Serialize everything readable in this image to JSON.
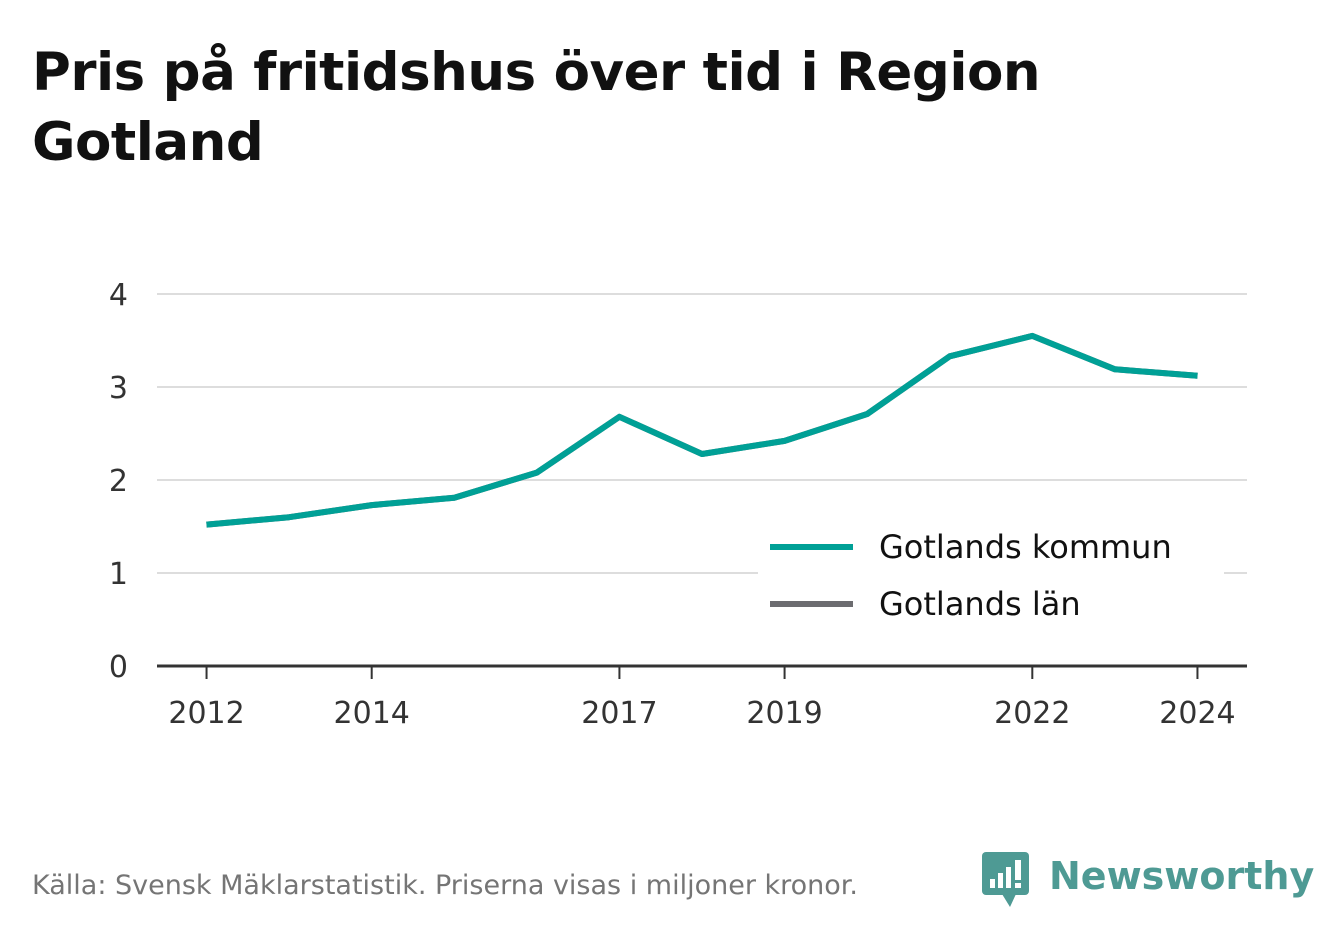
{
  "title": "Pris på fritidshus över tid i Region Gotland",
  "footer": {
    "source": "Källa: Svensk Mäklarstatistik. Priserna visas i miljoner kronor.",
    "brand": "Newsworthy"
  },
  "colors": {
    "kommun": "#00a096",
    "lan": "#6c6c70",
    "grid": "#dddddd",
    "axis": "#333333",
    "brand": "#4e9a94"
  },
  "chart_data": {
    "type": "line",
    "x": [
      2012,
      2013,
      2014,
      2015,
      2016,
      2017,
      2018,
      2019,
      2020,
      2021,
      2022,
      2023,
      2024
    ],
    "x_ticks": [
      "2012",
      "2014",
      "2017",
      "2019",
      "2022",
      "2024"
    ],
    "y_ticks": [
      "0",
      "1",
      "2",
      "3",
      "4"
    ],
    "ylim": [
      0,
      4
    ],
    "xlim": [
      2011.4,
      2024.6
    ],
    "grid": true,
    "legend_position": "bottom-right",
    "series": [
      {
        "name": "Gotlands kommun",
        "color_key": "kommun",
        "values": [
          1.52,
          1.6,
          1.73,
          1.81,
          2.08,
          2.68,
          2.28,
          2.42,
          2.71,
          3.33,
          3.55,
          3.19,
          3.12
        ]
      },
      {
        "name": "Gotlands län",
        "color_key": "lan",
        "values": [
          1.52,
          1.6,
          1.73,
          1.81,
          2.08,
          2.68,
          2.28,
          2.42,
          2.71,
          3.33,
          3.55,
          3.19,
          3.12
        ]
      }
    ]
  }
}
